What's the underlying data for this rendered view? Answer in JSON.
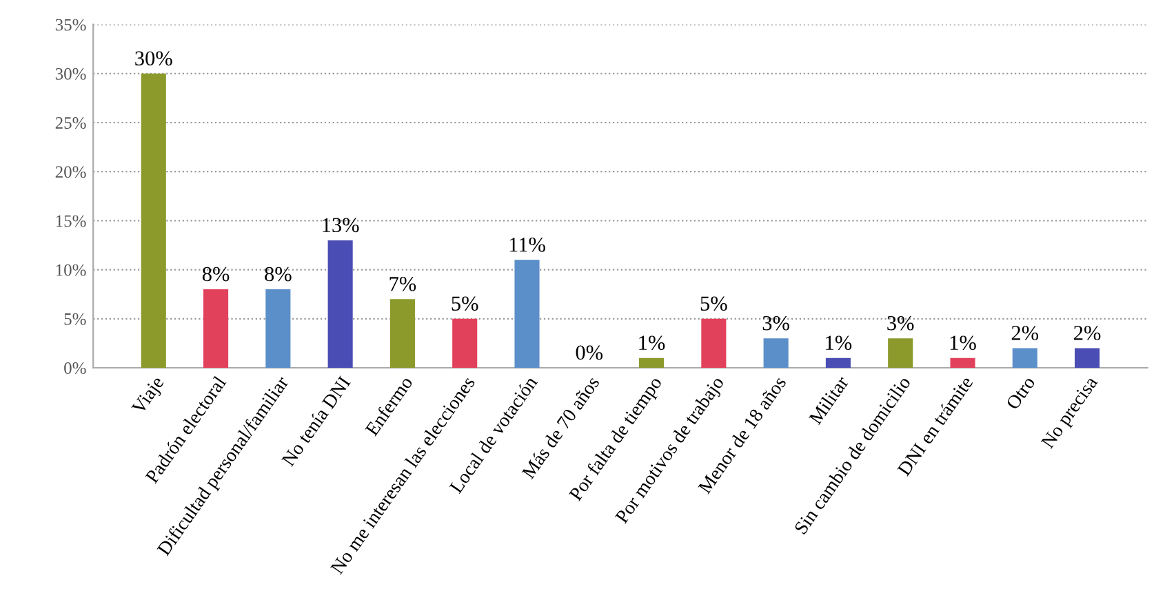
{
  "chart_data": {
    "type": "bar",
    "categories": [
      "Viaje",
      "Padrón electoral",
      "Dificultad personal/familiar",
      "No tenía DNI",
      "Enfermo",
      "No me interesan las elecciones",
      "Local de votación",
      "Más de 70 años",
      "Por falta de tiempo",
      "Por motivos de trabajo",
      "Menor de 18 años",
      "Militar",
      "Sin cambio de domicilio",
      "DNI en trámite",
      "Otro",
      "No precisa"
    ],
    "values": [
      30,
      8,
      8,
      13,
      7,
      5,
      11,
      0,
      1,
      5,
      3,
      1,
      3,
      1,
      2,
      2
    ],
    "value_labels": [
      "30%",
      "8%",
      "8%",
      "13%",
      "7%",
      "5%",
      "11%",
      "0%",
      "1%",
      "5%",
      "3%",
      "1%",
      "3%",
      "1%",
      "2%",
      "2%"
    ],
    "colors": [
      "#8c9a2c",
      "#e2415c",
      "#5b8fc9",
      "#4a4db3",
      "#8c9a2c",
      "#e2415c",
      "#5b8fc9",
      "#4a4db3",
      "#8c9a2c",
      "#e2415c",
      "#5b8fc9",
      "#4a4db3",
      "#8c9a2c",
      "#e2415c",
      "#5b8fc9",
      "#4a4db3"
    ],
    "ylim": [
      0,
      35
    ],
    "yticks": [
      {
        "value": 0,
        "label": "0%"
      },
      {
        "value": 5,
        "label": "5%"
      },
      {
        "value": 10,
        "label": "10%"
      },
      {
        "value": 15,
        "label": "15%"
      },
      {
        "value": 20,
        "label": "20%"
      },
      {
        "value": 25,
        "label": "25%"
      },
      {
        "value": 30,
        "label": "30%"
      },
      {
        "value": 35,
        "label": "35%"
      }
    ],
    "grid": "y"
  }
}
